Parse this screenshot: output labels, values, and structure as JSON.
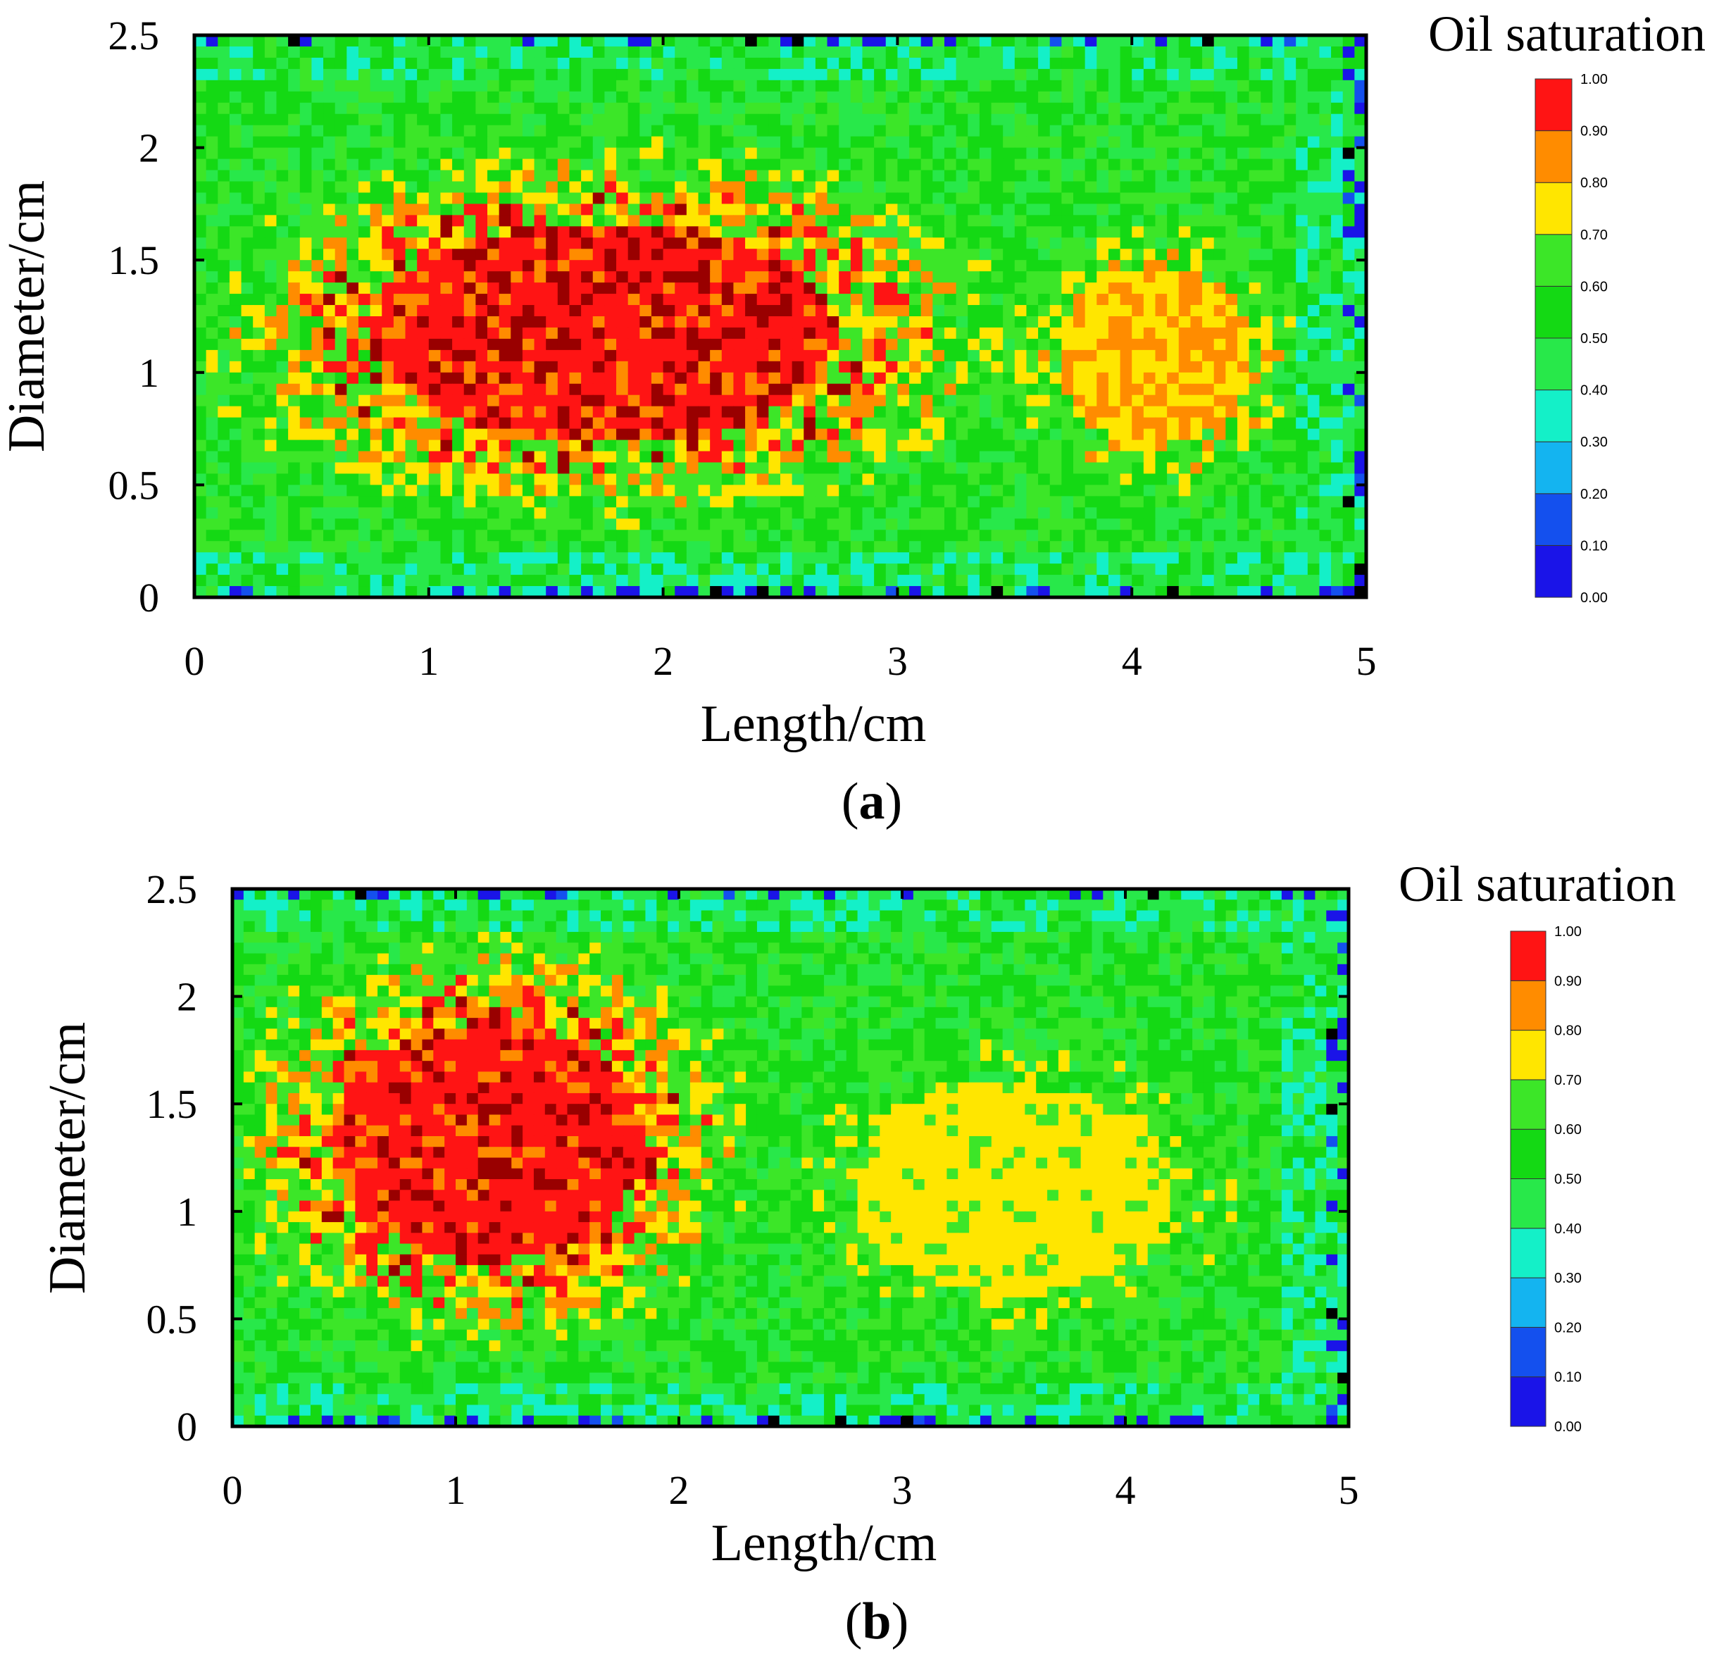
{
  "chart_data": [
    {
      "type": "heatmap",
      "panel_label_parts": [
        "(",
        "a",
        ")"
      ],
      "title": "Oil saturation",
      "xlabel": "Length/cm",
      "ylabel": "Diameter/cm",
      "xlim": [
        0,
        5
      ],
      "ylim": [
        0,
        2.5
      ],
      "xticks": [
        "0",
        "1",
        "2",
        "3",
        "4",
        "5"
      ],
      "yticks": [
        "0",
        "0.5",
        "1",
        "1.5",
        "2",
        "2.5"
      ],
      "grid": false,
      "grid_cols": 100,
      "grid_rows": 50,
      "colorbar": {
        "levels": [
          "0.00",
          "0.10",
          "0.20",
          "0.30",
          "0.40",
          "0.50",
          "0.60",
          "0.70",
          "0.80",
          "0.90",
          "1.00"
        ],
        "colors": [
          "#1a14e8",
          "#1450ee",
          "#14b4f0",
          "#14f0c8",
          "#28e84a",
          "#14d914",
          "#3ce628",
          "#ffe600",
          "#ff8c00",
          "#ff1414"
        ]
      },
      "high_saturation_zones": [
        {
          "x_range": [
            0.1,
            3.4
          ],
          "y_range": [
            0.35,
            2.0
          ],
          "core_value": 1.0
        },
        {
          "x_range": [
            3.4,
            4.8
          ],
          "y_range": [
            0.4,
            1.75
          ],
          "core_value": 0.85
        }
      ],
      "background_value": 0.55,
      "edge_value": 0.3
    },
    {
      "type": "heatmap",
      "panel_label_parts": [
        "(",
        "b",
        ")"
      ],
      "title": "Oil saturation",
      "xlabel": "Length/cm",
      "ylabel": "Diameter/cm",
      "xlim": [
        0,
        5
      ],
      "ylim": [
        0,
        2.5
      ],
      "xticks": [
        "0",
        "1",
        "2",
        "3",
        "4",
        "5"
      ],
      "yticks": [
        "0",
        "0.5",
        "1",
        "1.5",
        "2",
        "2.5"
      ],
      "grid": false,
      "grid_cols": 100,
      "grid_rows": 50,
      "colorbar": {
        "levels": [
          "0.00",
          "0.10",
          "0.20",
          "0.30",
          "0.40",
          "0.50",
          "0.60",
          "0.70",
          "0.80",
          "0.90",
          "1.00"
        ],
        "colors": [
          "#1a14e8",
          "#1450ee",
          "#14b4f0",
          "#14f0c8",
          "#28e84a",
          "#14d914",
          "#3ce628",
          "#ffe600",
          "#ff8c00",
          "#ff1414"
        ]
      },
      "high_saturation_zones": [
        {
          "x_range": [
            0.0,
            2.3
          ],
          "y_range": [
            0.4,
            2.25
          ],
          "core_value": 1.0
        },
        {
          "x_range": [
            2.3,
            4.7
          ],
          "y_range": [
            0.3,
            1.9
          ],
          "core_value": 0.8
        }
      ],
      "background_value": 0.55,
      "edge_value": 0.3
    }
  ]
}
